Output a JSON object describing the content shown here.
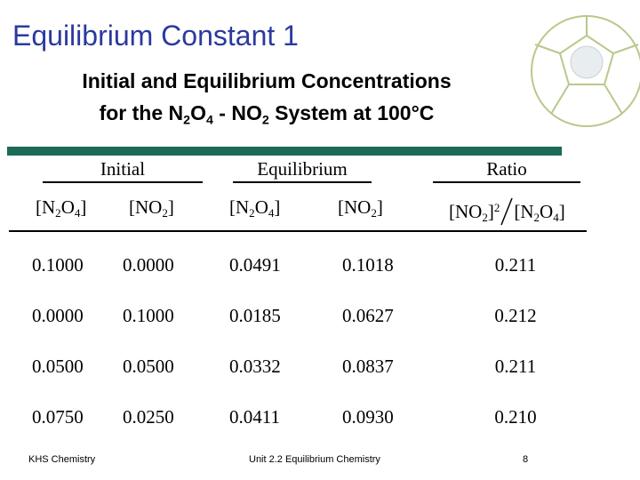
{
  "title": "Equilibrium Constant 1",
  "subtitle": {
    "line1": [
      {
        "text": "Initial and Equilibrium Concentrations"
      }
    ],
    "line2": [
      {
        "text": "for the N"
      },
      {
        "text": "2",
        "sub": true
      },
      {
        "text": "O"
      },
      {
        "text": "4",
        "sub": true
      },
      {
        "text": " - NO"
      },
      {
        "text": "2",
        "sub": true
      },
      {
        "text": " System at 100°C"
      }
    ]
  },
  "table": {
    "groups": [
      "Initial",
      "Equilibrium",
      "Ratio"
    ],
    "columns": [
      [
        {
          "text": "[N"
        },
        {
          "text": "2",
          "sub": true
        },
        {
          "text": "O"
        },
        {
          "text": "4",
          "sub": true
        },
        {
          "text": "]"
        }
      ],
      [
        {
          "text": "[NO"
        },
        {
          "text": "2",
          "sub": true
        },
        {
          "text": "]"
        }
      ],
      [
        {
          "text": "[N"
        },
        {
          "text": "2",
          "sub": true
        },
        {
          "text": "O"
        },
        {
          "text": "4",
          "sub": true
        },
        {
          "text": "]"
        }
      ],
      [
        {
          "text": "[NO"
        },
        {
          "text": "2",
          "sub": true
        },
        {
          "text": "]"
        }
      ]
    ],
    "ratio": {
      "numerator": [
        {
          "text": "[NO"
        },
        {
          "text": "2",
          "sub": true
        },
        {
          "text": "]"
        },
        {
          "text": "2",
          "sup": true
        }
      ],
      "denominator": [
        {
          "text": "[N"
        },
        {
          "text": "2",
          "sub": true
        },
        {
          "text": "O"
        },
        {
          "text": "4",
          "sub": true
        },
        {
          "text": "]"
        }
      ]
    },
    "rows": [
      [
        "0.1000",
        "0.0000",
        "0.0491",
        "0.1018",
        "0.211"
      ],
      [
        "0.0000",
        "0.1000",
        "0.0185",
        "0.0627",
        "0.212"
      ],
      [
        "0.0500",
        "0.0500",
        "0.0332",
        "0.0837",
        "0.211"
      ],
      [
        "0.0750",
        "0.0250",
        "0.0411",
        "0.0930",
        "0.210"
      ]
    ]
  },
  "footer": {
    "left": "KHS Chemistry",
    "center": "Unit 2.2 Equilibrium Chemistry",
    "page": "8"
  }
}
